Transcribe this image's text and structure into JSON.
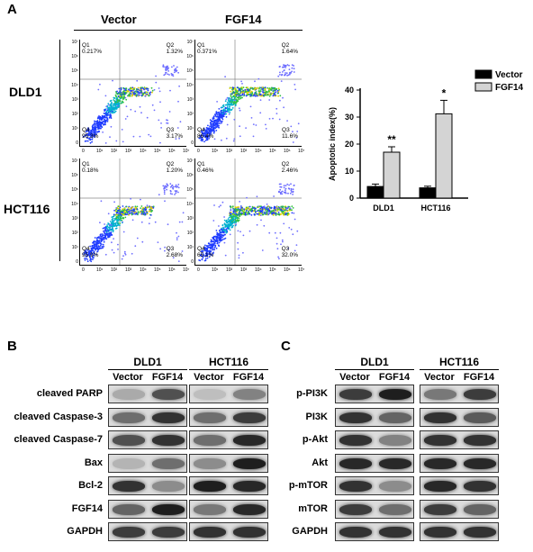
{
  "panel_a": {
    "letter": "A",
    "col_headers": [
      "Vector",
      "FGF14"
    ],
    "row_labels": [
      "DLD1",
      "HCT116"
    ],
    "y_ticks": [
      "10⁷",
      "10⁶",
      "10⁵",
      "10⁴",
      "10³",
      "10²",
      "10¹",
      "0"
    ],
    "x_ticks": [
      "0",
      "10¹",
      "10²",
      "10³",
      "10⁴",
      "10⁵",
      "10⁶",
      "10⁷"
    ],
    "plots": [
      {
        "q1_label": "Q1",
        "q1": "0.217%",
        "q2_label": "Q2",
        "q2": "1.32%",
        "q3_label": "Q3",
        "q3": "3.17%",
        "q4_label": "Q4",
        "q4": "95.3%"
      },
      {
        "q1_label": "Q1",
        "q1": "0.371%",
        "q2_label": "Q2",
        "q2": "1.64%",
        "q3_label": "Q3",
        "q3": "11.6%",
        "q4_label": "Q4",
        "q4": "86.4%"
      },
      {
        "q1_label": "Q1",
        "q1": "0.18%",
        "q2_label": "Q2",
        "q2": "1.20%",
        "q3_label": "Q3",
        "q3": "2.68%",
        "q4_label": "Q4",
        "q4": "95.9%"
      },
      {
        "q1_label": "Q1",
        "q1": "0.46%",
        "q2_label": "Q2",
        "q2": "2.46%",
        "q3_label": "Q3",
        "q3": "32.0%",
        "q4_label": "Q4",
        "q4": "65.1%"
      }
    ]
  },
  "chart_data": {
    "type": "bar",
    "categories": [
      "DLD1",
      "HCT116"
    ],
    "series": [
      {
        "name": "Vector",
        "values": [
          4.3,
          3.8
        ],
        "errors": [
          0.9,
          0.6
        ],
        "color": "#000000"
      },
      {
        "name": "FGF14",
        "values": [
          17.0,
          31.2
        ],
        "errors": [
          2.0,
          5.0
        ],
        "color": "#d4d4d4"
      }
    ],
    "significance": [
      "**",
      "*"
    ],
    "ylabel": "Apoptotic index(%)",
    "ylim": [
      0,
      40
    ],
    "yticks": [
      "0",
      "10",
      "20",
      "30",
      "40"
    ],
    "legend": "top-right"
  },
  "panel_b": {
    "letter": "B",
    "groups": [
      "DLD1",
      "HCT116"
    ],
    "lanes": [
      "Vector",
      "FGF14",
      "Vector",
      "FGF14"
    ],
    "rows": [
      {
        "label": "cleaved PARP",
        "i": [
          0.25,
          0.7,
          0.15,
          0.45
        ]
      },
      {
        "label": "cleaved Caspase-3",
        "i": [
          0.55,
          0.85,
          0.55,
          0.8
        ]
      },
      {
        "label": "cleaved Caspase-7",
        "i": [
          0.7,
          0.85,
          0.55,
          0.9
        ]
      },
      {
        "label": "Bax",
        "i": [
          0.2,
          0.55,
          0.4,
          0.95
        ]
      },
      {
        "label": "Bcl-2",
        "i": [
          0.85,
          0.4,
          0.95,
          0.9
        ]
      },
      {
        "label": "FGF14",
        "i": [
          0.6,
          0.95,
          0.5,
          0.9
        ]
      },
      {
        "label": "GAPDH",
        "i": [
          0.8,
          0.8,
          0.85,
          0.85
        ]
      }
    ]
  },
  "panel_c": {
    "letter": "C",
    "groups": [
      "DLD1",
      "HCT116"
    ],
    "lanes": [
      "Vector",
      "FGF14",
      "Vector",
      "FGF14"
    ],
    "rows": [
      {
        "label": "p-PI3K",
        "i": [
          0.8,
          0.95,
          0.5,
          0.8
        ]
      },
      {
        "label": "PI3K",
        "i": [
          0.85,
          0.6,
          0.85,
          0.65
        ]
      },
      {
        "label": "p-Akt",
        "i": [
          0.85,
          0.45,
          0.85,
          0.85
        ]
      },
      {
        "label": "Akt",
        "i": [
          0.9,
          0.9,
          0.9,
          0.9
        ]
      },
      {
        "label": "p-mTOR",
        "i": [
          0.85,
          0.4,
          0.9,
          0.85
        ]
      },
      {
        "label": "mTOR",
        "i": [
          0.8,
          0.55,
          0.8,
          0.6
        ]
      },
      {
        "label": "GAPDH",
        "i": [
          0.85,
          0.85,
          0.85,
          0.85
        ]
      }
    ]
  }
}
